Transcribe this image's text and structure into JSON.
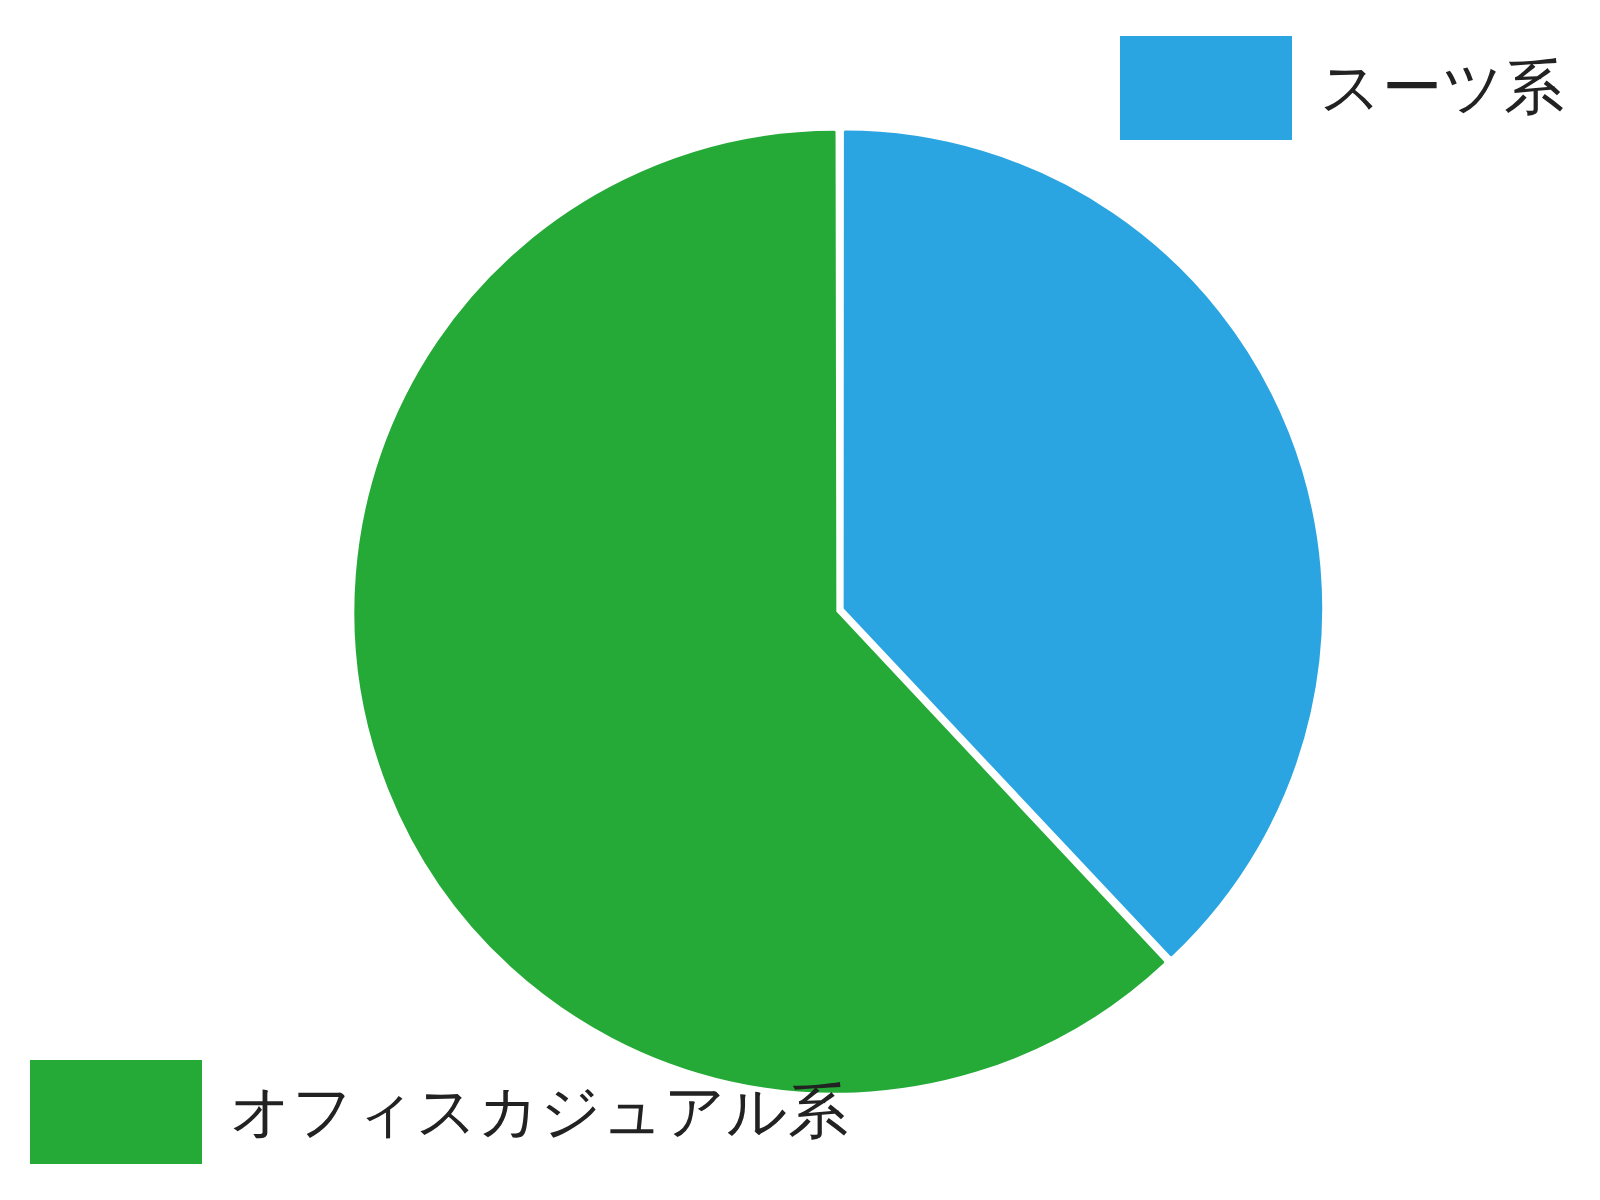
{
  "chart_data": {
    "type": "pie",
    "categories": [
      "スーツ系",
      "オフィスカジュアル系"
    ],
    "values": [
      38,
      62
    ],
    "colors": [
      "#2ba5e1",
      "#25aa38"
    ],
    "legend": "top right"
  }
}
